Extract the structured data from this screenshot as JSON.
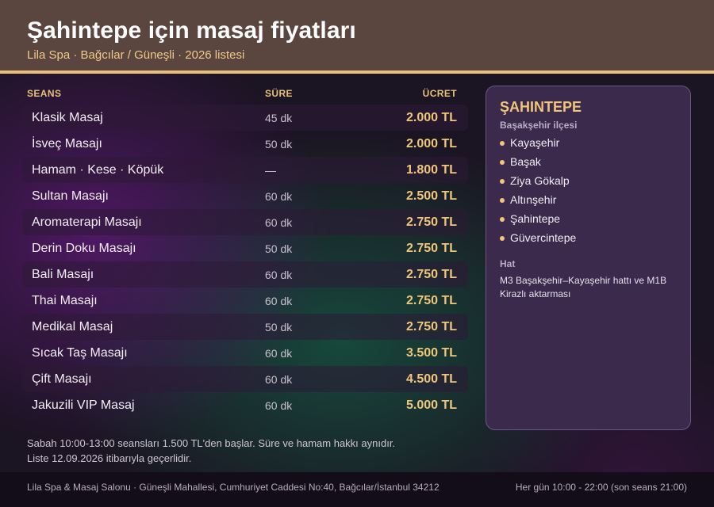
{
  "header": {
    "title": "Şahintepe için masaj fiyatları",
    "subtitle": "Lila Spa · Bağcılar / Güneşli · 2026 listesi"
  },
  "table": {
    "columns": {
      "session": "SEANS",
      "duration": "SÜRE",
      "price": "ÜCRET"
    },
    "rows": [
      {
        "name": "Klasik Masaj",
        "duration": "45 dk",
        "price": "2.000 TL"
      },
      {
        "name": "İsveç Masajı",
        "duration": "50 dk",
        "price": "2.000 TL"
      },
      {
        "name": "Hamam · Kese · Köpük",
        "duration": "—",
        "price": "1.800 TL"
      },
      {
        "name": "Sultan Masajı",
        "duration": "60 dk",
        "price": "2.500 TL"
      },
      {
        "name": "Aromaterapi Masajı",
        "duration": "60 dk",
        "price": "2.750 TL"
      },
      {
        "name": "Derin Doku Masajı",
        "duration": "50 dk",
        "price": "2.750 TL"
      },
      {
        "name": "Bali Masajı",
        "duration": "60 dk",
        "price": "2.750 TL"
      },
      {
        "name": "Thai Masajı",
        "duration": "60 dk",
        "price": "2.750 TL"
      },
      {
        "name": "Medikal Masaj",
        "duration": "50 dk",
        "price": "2.750 TL"
      },
      {
        "name": "Sıcak Taş Masajı",
        "duration": "60 dk",
        "price": "3.500 TL"
      },
      {
        "name": "Çift Masajı",
        "duration": "60 dk",
        "price": "4.500 TL"
      },
      {
        "name": "Jakuzili VIP Masaj",
        "duration": "60 dk",
        "price": "5.000 TL"
      }
    ]
  },
  "notes": [
    "Sabah 10:00-13:00 seansları 1.500 TL'den başlar. Süre ve hamam hakkı aynıdır.",
    "Liste 12.09.2026 itibarıyla geçerlidir."
  ],
  "sidebar": {
    "title": "ŞAHINTEPE",
    "district": "Başakşehir ilçesi",
    "neighborhoods": [
      "Kayaşehir",
      "Başak",
      "Ziya Gökalp",
      "Altınşehir",
      "Şahintepe",
      "Güvercintepe"
    ],
    "line_label": "Hat",
    "line_text": "M3 Başakşehir–Kayaşehir hattı ve M1B Kirazlı aktarması"
  },
  "footer": {
    "address": "Lila Spa & Masaj Salonu · Güneşli Mahallesi, Cumhuriyet Caddesi No:40, Bağcılar/İstanbul 34212",
    "hours": "Her gün 10:00 - 22:00 (son seans 21:00)"
  },
  "colors": {
    "accent_gold": "#f0c67a",
    "header_bg": "#5a463f",
    "panel_bg": "#3b2a4c"
  }
}
